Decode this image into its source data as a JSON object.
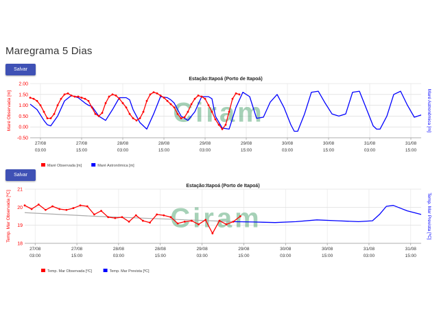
{
  "page": {
    "title": "Maregrama 5 Dias"
  },
  "buttons": {
    "save_label": "Salvar"
  },
  "watermark": "Ciram",
  "colors": {
    "observed": "#ff0000",
    "predicted": "#0000ff",
    "accent": "#3f51b5",
    "watermark": "#3a9a60",
    "trend": "#aaaaaa"
  },
  "chart_data": [
    {
      "type": "line",
      "title": "Estação:Itapoá (Porto de Itapoá)",
      "ylabel": "Maré Observada [m]",
      "y2label": "Maré Astronômica [m]",
      "ylim": [
        -0.5,
        2.0
      ],
      "yticks": [
        "2.00",
        "1.50",
        "1.00",
        "0.50",
        "0.00",
        "-0.50"
      ],
      "xlim": [
        0,
        114
      ],
      "xticks": [
        {
          "day": "27/08",
          "time": "03:00"
        },
        {
          "day": "27/08",
          "time": "15:00"
        },
        {
          "day": "28/08",
          "time": "03:00"
        },
        {
          "day": "28/08",
          "time": "15:00"
        },
        {
          "day": "29/08",
          "time": "03:00"
        },
        {
          "day": "29/08",
          "time": "15:00"
        },
        {
          "day": "30/08",
          "time": "03:00"
        },
        {
          "day": "30/08",
          "time": "15:00"
        },
        {
          "day": "31/08",
          "time": "03:00"
        },
        {
          "day": "31/08",
          "time": "15:00"
        }
      ],
      "grid": true,
      "legend_position": "bottom-left",
      "series": [
        {
          "name": "Maré Astronômica [m]",
          "x": [
            0,
            2,
            4,
            5,
            6,
            8,
            10,
            12,
            14,
            16,
            17,
            18,
            20,
            22,
            24,
            26,
            28,
            29,
            30,
            32,
            34,
            36,
            38,
            40,
            41,
            42,
            44,
            46,
            48,
            50,
            52,
            53,
            54,
            56,
            58,
            60,
            62,
            64,
            66,
            68,
            70,
            72,
            74,
            76,
            77,
            78,
            80,
            82,
            84,
            86,
            88,
            90,
            92,
            94,
            96,
            98,
            100,
            101,
            102,
            104,
            106,
            108,
            110,
            112,
            114
          ],
          "y": [
            1.05,
            0.8,
            0.3,
            0.1,
            0.05,
            0.5,
            1.2,
            1.45,
            1.35,
            1.1,
            1.0,
            0.95,
            0.5,
            0.3,
            0.8,
            1.35,
            1.35,
            1.25,
            0.8,
            0.2,
            -0.1,
            0.6,
            1.4,
            1.35,
            1.25,
            1.1,
            0.5,
            0.3,
            0.7,
            1.4,
            1.4,
            1.3,
            0.5,
            -0.05,
            -0.1,
            0.9,
            1.6,
            1.4,
            0.4,
            0.45,
            1.15,
            1.5,
            0.9,
            0.1,
            -0.2,
            -0.2,
            0.6,
            1.6,
            1.65,
            1.1,
            0.6,
            0.5,
            0.6,
            1.6,
            1.65,
            0.85,
            0.05,
            -0.1,
            -0.1,
            0.5,
            1.5,
            1.65,
            1.0,
            0.45,
            0.55
          ]
        },
        {
          "name": "Maré Observada [m]",
          "x": [
            0,
            1,
            2,
            3,
            4,
            5,
            6,
            7,
            8,
            9,
            10,
            11,
            12,
            13,
            14,
            15,
            16,
            17,
            18,
            19,
            20,
            21,
            22,
            23,
            24,
            25,
            26,
            27,
            28,
            29,
            30,
            31,
            32,
            33,
            34,
            35,
            36,
            37,
            38,
            39,
            40,
            41,
            42,
            43,
            44,
            45,
            46,
            47,
            48,
            49,
            50,
            51,
            52,
            53,
            54,
            55,
            56,
            57,
            58,
            59,
            60,
            61
          ],
          "y": [
            1.35,
            1.3,
            1.2,
            1.0,
            0.7,
            0.4,
            0.4,
            0.6,
            1.0,
            1.3,
            1.5,
            1.55,
            1.45,
            1.4,
            1.4,
            1.35,
            1.3,
            1.2,
            0.9,
            0.6,
            0.5,
            0.65,
            1.1,
            1.4,
            1.5,
            1.45,
            1.3,
            1.1,
            0.9,
            0.6,
            0.4,
            0.3,
            0.4,
            0.7,
            1.2,
            1.5,
            1.6,
            1.55,
            1.45,
            1.35,
            1.2,
            1.05,
            0.9,
            0.6,
            0.4,
            0.45,
            0.7,
            1.05,
            1.3,
            1.45,
            1.4,
            1.3,
            1.0,
            0.7,
            0.35,
            0.1,
            -0.1,
            0.1,
            0.7,
            1.3,
            1.55,
            1.5
          ]
        }
      ]
    },
    {
      "type": "line",
      "title": "Estação:Itapoá (Porto de Itapoá)",
      "ylabel": "Temp. Mar Observada [ºC]",
      "y2label": "Temp. Mar Prevista [ºC]",
      "ylim": [
        18,
        21
      ],
      "yticks": [
        "21",
        "20",
        "19",
        "18"
      ],
      "xlim": [
        0,
        114
      ],
      "xticks": [
        {
          "day": "27/08",
          "time": "03:00"
        },
        {
          "day": "27/08",
          "time": "15:00"
        },
        {
          "day": "28/08",
          "time": "03:00"
        },
        {
          "day": "28/08",
          "time": "15:00"
        },
        {
          "day": "29/08",
          "time": "03:00"
        },
        {
          "day": "29/08",
          "time": "15:00"
        },
        {
          "day": "30/08",
          "time": "03:00"
        },
        {
          "day": "30/08",
          "time": "15:00"
        },
        {
          "day": "31/08",
          "time": "03:00"
        },
        {
          "day": "31/08",
          "time": "15:00"
        }
      ],
      "grid": true,
      "legend_position": "bottom-left",
      "series": [
        {
          "name": "Temp. Mar Prevista [ºC]",
          "x": [
            60,
            66,
            72,
            78,
            84,
            90,
            96,
            100,
            102,
            104,
            106,
            108,
            110,
            112,
            114
          ],
          "y": [
            19.2,
            19.18,
            19.15,
            19.2,
            19.3,
            19.25,
            19.2,
            19.25,
            19.6,
            20.05,
            20.1,
            19.95,
            19.8,
            19.7,
            19.6
          ]
        },
        {
          "name": "Temp. Mar Observada [ºC]",
          "x": [
            0,
            2,
            4,
            6,
            8,
            10,
            12,
            14,
            16,
            18,
            20,
            22,
            24,
            26,
            28,
            30,
            32,
            34,
            36,
            38,
            40,
            42,
            44,
            46,
            48,
            50,
            52,
            54,
            56,
            58,
            60,
            62
          ],
          "y": [
            20.1,
            19.9,
            20.15,
            19.85,
            20.05,
            19.9,
            19.85,
            19.95,
            20.1,
            20.05,
            19.6,
            19.8,
            19.45,
            19.4,
            19.45,
            19.2,
            19.55,
            19.25,
            19.15,
            19.6,
            19.55,
            19.45,
            19.1,
            19.2,
            19.25,
            19.05,
            19.3,
            18.55,
            19.25,
            19.05,
            19.2,
            19.5
          ]
        }
      ]
    }
  ]
}
